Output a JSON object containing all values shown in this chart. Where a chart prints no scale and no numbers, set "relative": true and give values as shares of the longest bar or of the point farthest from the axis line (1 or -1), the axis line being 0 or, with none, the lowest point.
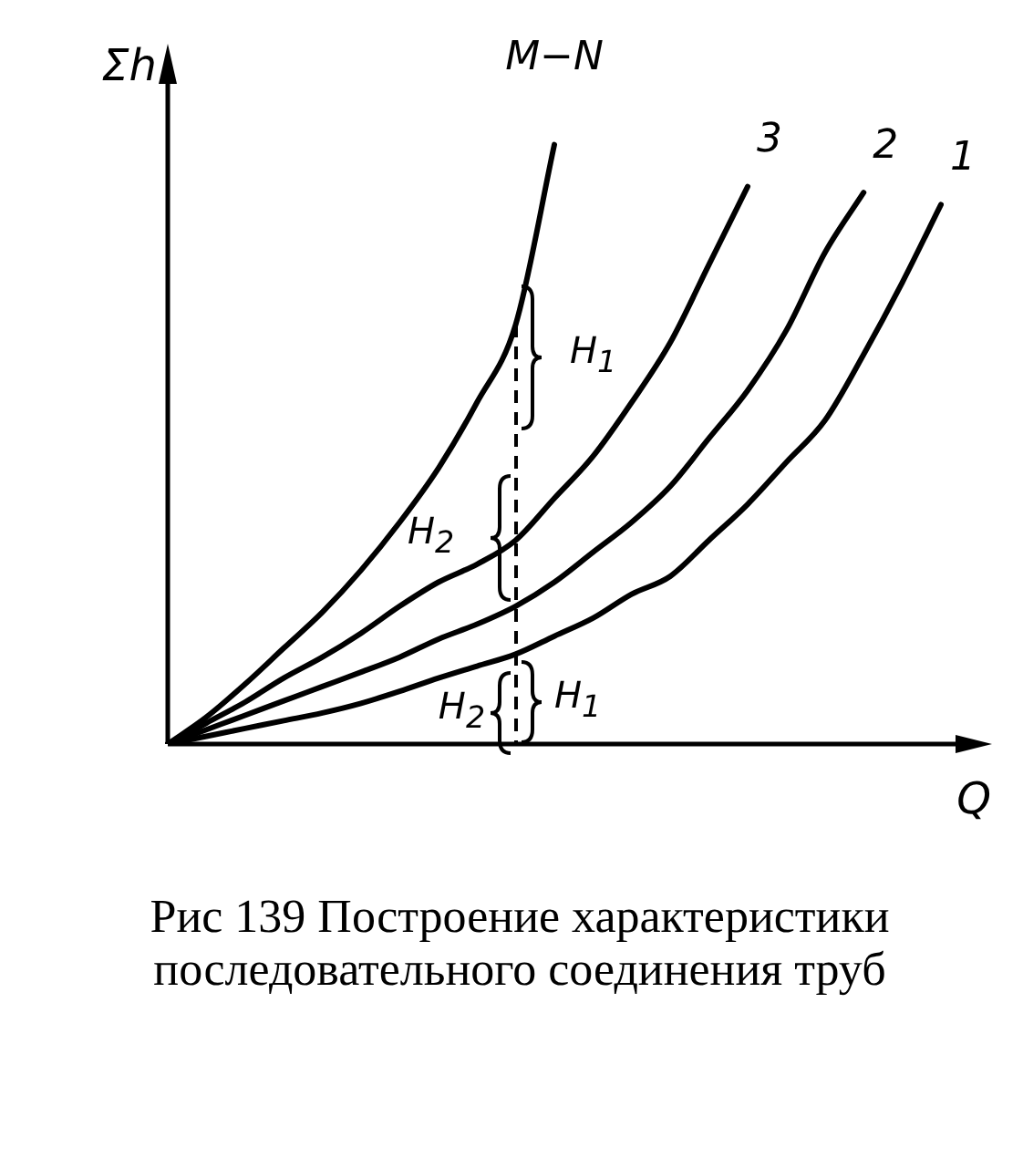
{
  "chart_data": {
    "type": "line",
    "relative": true,
    "xlabel": "Q",
    "ylabel": "Σh",
    "legend": false,
    "grid": false,
    "marker": "none",
    "line_style": "solid",
    "categories": [
      null,
      null,
      null,
      null,
      null,
      null,
      null,
      null,
      null,
      null,
      null,
      null,
      null,
      null,
      null,
      null,
      null,
      null,
      null,
      null,
      null
    ],
    "series": [
      {
        "name": "M−N",
        "color": "#000000",
        "values": [
          0,
          0.045,
          0.1,
          0.16,
          0.22,
          0.29,
          0.37,
          0.46,
          0.57,
          0.7,
          1,
          null,
          null,
          null,
          null,
          null,
          null,
          null,
          null,
          null,
          null
        ]
      },
      {
        "name": "3",
        "color": "#000000",
        "values": [
          0,
          0.035,
          0.07,
          0.11,
          0.145,
          0.185,
          0.23,
          0.27,
          0.3,
          0.34,
          0.41,
          0.48,
          0.57,
          0.67,
          0.8,
          0.93,
          null,
          null,
          null,
          null,
          null
        ]
      },
      {
        "name": "2",
        "color": "#000000",
        "values": [
          0,
          0.024,
          0.048,
          0.072,
          0.096,
          0.12,
          0.145,
          0.175,
          0.2,
          0.23,
          0.27,
          0.32,
          0.37,
          0.43,
          0.51,
          0.59,
          0.69,
          0.82,
          0.92,
          null,
          null
        ]
      },
      {
        "name": "1",
        "color": "#000000",
        "values": [
          0,
          0.013,
          0.026,
          0.039,
          0.052,
          0.068,
          0.088,
          0.11,
          0.13,
          0.15,
          0.18,
          0.21,
          0.25,
          0.28,
          0.34,
          0.4,
          0.47,
          0.54,
          0.65,
          0.77,
          0.9
        ]
      }
    ],
    "annotations": [
      "H$_{1}$",
      "H$_{2}$",
      "H$_{1}$",
      "H$_{2}$",
      "Рис 139 Построение характеристики последовательного соединения труб"
    ]
  }
}
